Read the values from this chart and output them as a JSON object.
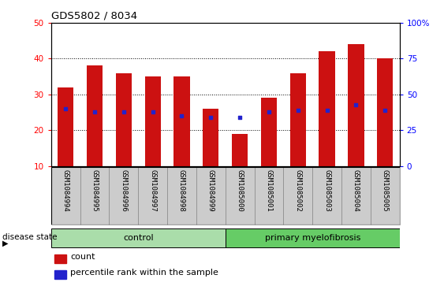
{
  "title": "GDS5802 / 8034",
  "samples": [
    "GSM1084994",
    "GSM1084995",
    "GSM1084996",
    "GSM1084997",
    "GSM1084998",
    "GSM1084999",
    "GSM1085000",
    "GSM1085001",
    "GSM1085002",
    "GSM1085003",
    "GSM1085004",
    "GSM1085005"
  ],
  "counts": [
    32,
    38,
    36,
    35,
    35,
    26,
    19,
    29,
    36,
    42,
    44,
    40
  ],
  "percentile_ranks": [
    26,
    25,
    25,
    25,
    24,
    23.5,
    23.5,
    25,
    25.5,
    25.5,
    27,
    25.5
  ],
  "bar_color": "#cc1111",
  "dot_color": "#2222cc",
  "ylim_left": [
    10,
    50
  ],
  "ylim_right": [
    0,
    100
  ],
  "yticks_left": [
    10,
    20,
    30,
    40,
    50
  ],
  "yticks_right": [
    0,
    25,
    50,
    75,
    100
  ],
  "ytick_labels_right": [
    "0",
    "25",
    "50",
    "75",
    "100%"
  ],
  "control_samples": 6,
  "group_labels": [
    "control",
    "primary myelofibrosis"
  ],
  "group_color_ctrl": "#aaddaa",
  "group_color_mf": "#66cc66",
  "disease_state_label": "disease state",
  "legend_count_label": "count",
  "legend_percentile_label": "percentile rank within the sample",
  "bar_width": 0.55,
  "label_bg": "#cccccc",
  "plot_bg": "#ffffff"
}
